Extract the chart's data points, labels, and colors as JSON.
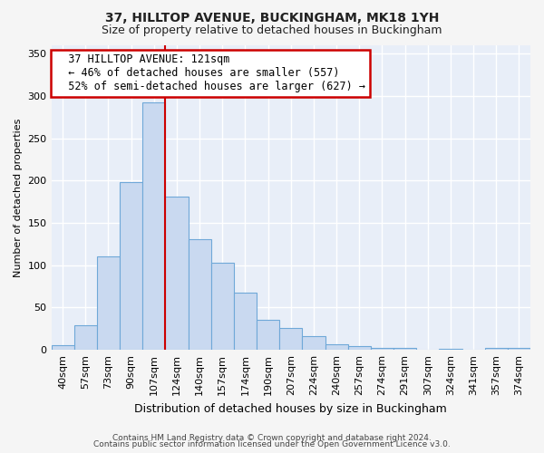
{
  "title": "37, HILLTOP AVENUE, BUCKINGHAM, MK18 1YH",
  "subtitle": "Size of property relative to detached houses in Buckingham",
  "xlabel": "Distribution of detached houses by size in Buckingham",
  "ylabel": "Number of detached properties",
  "bar_labels": [
    "40sqm",
    "57sqm",
    "73sqm",
    "90sqm",
    "107sqm",
    "124sqm",
    "140sqm",
    "157sqm",
    "174sqm",
    "190sqm",
    "207sqm",
    "224sqm",
    "240sqm",
    "257sqm",
    "274sqm",
    "291sqm",
    "307sqm",
    "324sqm",
    "341sqm",
    "357sqm",
    "374sqm"
  ],
  "bar_heights": [
    6,
    29,
    111,
    198,
    293,
    181,
    131,
    103,
    68,
    36,
    26,
    16,
    7,
    4,
    2,
    2,
    0,
    1,
    0,
    2,
    2
  ],
  "bar_color": "#c9d9f0",
  "bar_edge_color": "#6fa8d8",
  "vline_x": 5.0,
  "vline_color": "#cc0000",
  "annotation_title": "37 HILLTOP AVENUE: 121sqm",
  "annotation_line1": "← 46% of detached houses are smaller (557)",
  "annotation_line2": "52% of semi-detached houses are larger (627) →",
  "annotation_box_color": "#ffffff",
  "annotation_box_edgecolor": "#cc0000",
  "ylim": [
    0,
    360
  ],
  "yticks": [
    0,
    50,
    100,
    150,
    200,
    250,
    300,
    350
  ],
  "footer1": "Contains HM Land Registry data © Crown copyright and database right 2024.",
  "footer2": "Contains public sector information licensed under the Open Government Licence v3.0.",
  "fig_background": "#f5f5f5",
  "plot_background": "#e8eef8",
  "grid_color": "#c0cce0",
  "title_fontsize": 10,
  "subtitle_fontsize": 9,
  "xlabel_fontsize": 9,
  "ylabel_fontsize": 8,
  "tick_fontsize": 8,
  "annotation_fontsize": 8.5,
  "footer_fontsize": 6.5
}
